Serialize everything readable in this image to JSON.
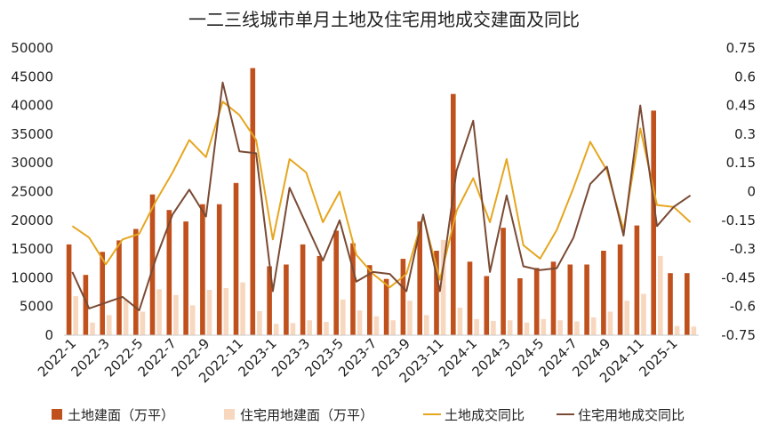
{
  "chart_data": {
    "type": "bar+line",
    "title": "一二三线城市单月土地及住宅用地成交建面及同比",
    "categories": [
      "2022-1",
      "2022-2",
      "2022-3",
      "2022-4",
      "2022-5",
      "2022-6",
      "2022-7",
      "2022-8",
      "2022-9",
      "2022-10",
      "2022-11",
      "2022-12",
      "2023-1",
      "2023-2",
      "2023-3",
      "2023-4",
      "2023-5",
      "2023-6",
      "2023-7",
      "2023-8",
      "2023-9",
      "2023-10",
      "2023-11",
      "2023-12",
      "2024-1",
      "2024-2",
      "2024-3",
      "2024-4",
      "2024-5",
      "2024-6",
      "2024-7",
      "2024-8",
      "2024-9",
      "2024-10",
      "2024-11",
      "2024-12",
      "2025-1",
      "2025-2"
    ],
    "x_tick_labels": [
      "2022-1",
      "2022-3",
      "2022-5",
      "2022-7",
      "2022-9",
      "2022-11",
      "2023-1",
      "2023-3",
      "2023-5",
      "2023-7",
      "2023-9",
      "2023-11",
      "2024-1",
      "2024-3",
      "2024-5",
      "2024-7",
      "2024-9",
      "2024-11",
      "2025-1"
    ],
    "y_left": {
      "ticks": [
        "0",
        "5000",
        "10000",
        "15000",
        "20000",
        "25000",
        "30000",
        "35000",
        "40000",
        "45000",
        "50000"
      ],
      "range": [
        0,
        50000
      ]
    },
    "y_right": {
      "ticks": [
        "0.75",
        "0.6",
        "0.45",
        "0.3",
        "0.15",
        "0",
        "-0.15",
        "-0.3",
        "-0.45",
        "-0.6",
        "-0.75"
      ],
      "range": [
        -0.75,
        0.75
      ]
    },
    "series": [
      {
        "name": "土地建面（万平）",
        "kind": "bar",
        "axis": "left",
        "color": "#c0501c",
        "values": [
          15800,
          10500,
          14500,
          16500,
          18500,
          24500,
          21800,
          19800,
          22800,
          22800,
          26500,
          46500,
          12000,
          12300,
          15800,
          13800,
          18200,
          16000,
          12200,
          9800,
          13300,
          19800,
          14700,
          42000,
          12800,
          10300,
          18700,
          9900,
          11700,
          12800,
          12300,
          12300,
          14700,
          15800,
          19100,
          39100,
          10800,
          10800
        ]
      },
      {
        "name": "住宅用地建面（万平）",
        "kind": "bar",
        "axis": "left",
        "color": "#f8d7bf",
        "values": [
          6800,
          2200,
          3500,
          6200,
          4100,
          8000,
          7000,
          5200,
          7900,
          8200,
          9200,
          4200,
          2000,
          2100,
          2600,
          2300,
          6200,
          4300,
          3300,
          2600,
          6000,
          3500,
          16600,
          4800,
          2800,
          2500,
          2600,
          2200,
          2800,
          2600,
          2400,
          3100,
          4100,
          6000,
          7200,
          13800,
          1600,
          1500
        ]
      },
      {
        "name": "土地成交同比",
        "kind": "line",
        "axis": "right",
        "color": "#e6a620",
        "values": [
          -0.18,
          -0.24,
          -0.38,
          -0.25,
          -0.22,
          -0.05,
          0.1,
          0.27,
          0.18,
          0.47,
          0.4,
          0.27,
          -0.25,
          0.17,
          0.1,
          -0.16,
          0,
          -0.33,
          -0.43,
          -0.5,
          -0.43,
          -0.13,
          -0.46,
          -0.1,
          0.07,
          -0.16,
          0.17,
          -0.28,
          -0.35,
          -0.2,
          0.02,
          0.26,
          0.11,
          -0.2,
          0.33,
          -0.07,
          -0.08,
          -0.16
        ]
      },
      {
        "name": "住宅用地成交同比",
        "kind": "line",
        "axis": "right",
        "color": "#7a4a34",
        "values": [
          -0.42,
          -0.61,
          -0.58,
          -0.55,
          -0.62,
          -0.35,
          -0.12,
          0.01,
          -0.13,
          0.57,
          0.21,
          0.2,
          -0.52,
          0.02,
          -0.17,
          -0.36,
          -0.15,
          -0.47,
          -0.42,
          -0.43,
          -0.52,
          -0.12,
          -0.52,
          0.11,
          0.37,
          -0.42,
          -0.02,
          -0.39,
          -0.41,
          -0.4,
          -0.24,
          0.04,
          0.13,
          -0.23,
          0.45,
          -0.18,
          -0.08,
          -0.02
        ]
      }
    ],
    "legend_position": "bottom",
    "grid": false
  }
}
